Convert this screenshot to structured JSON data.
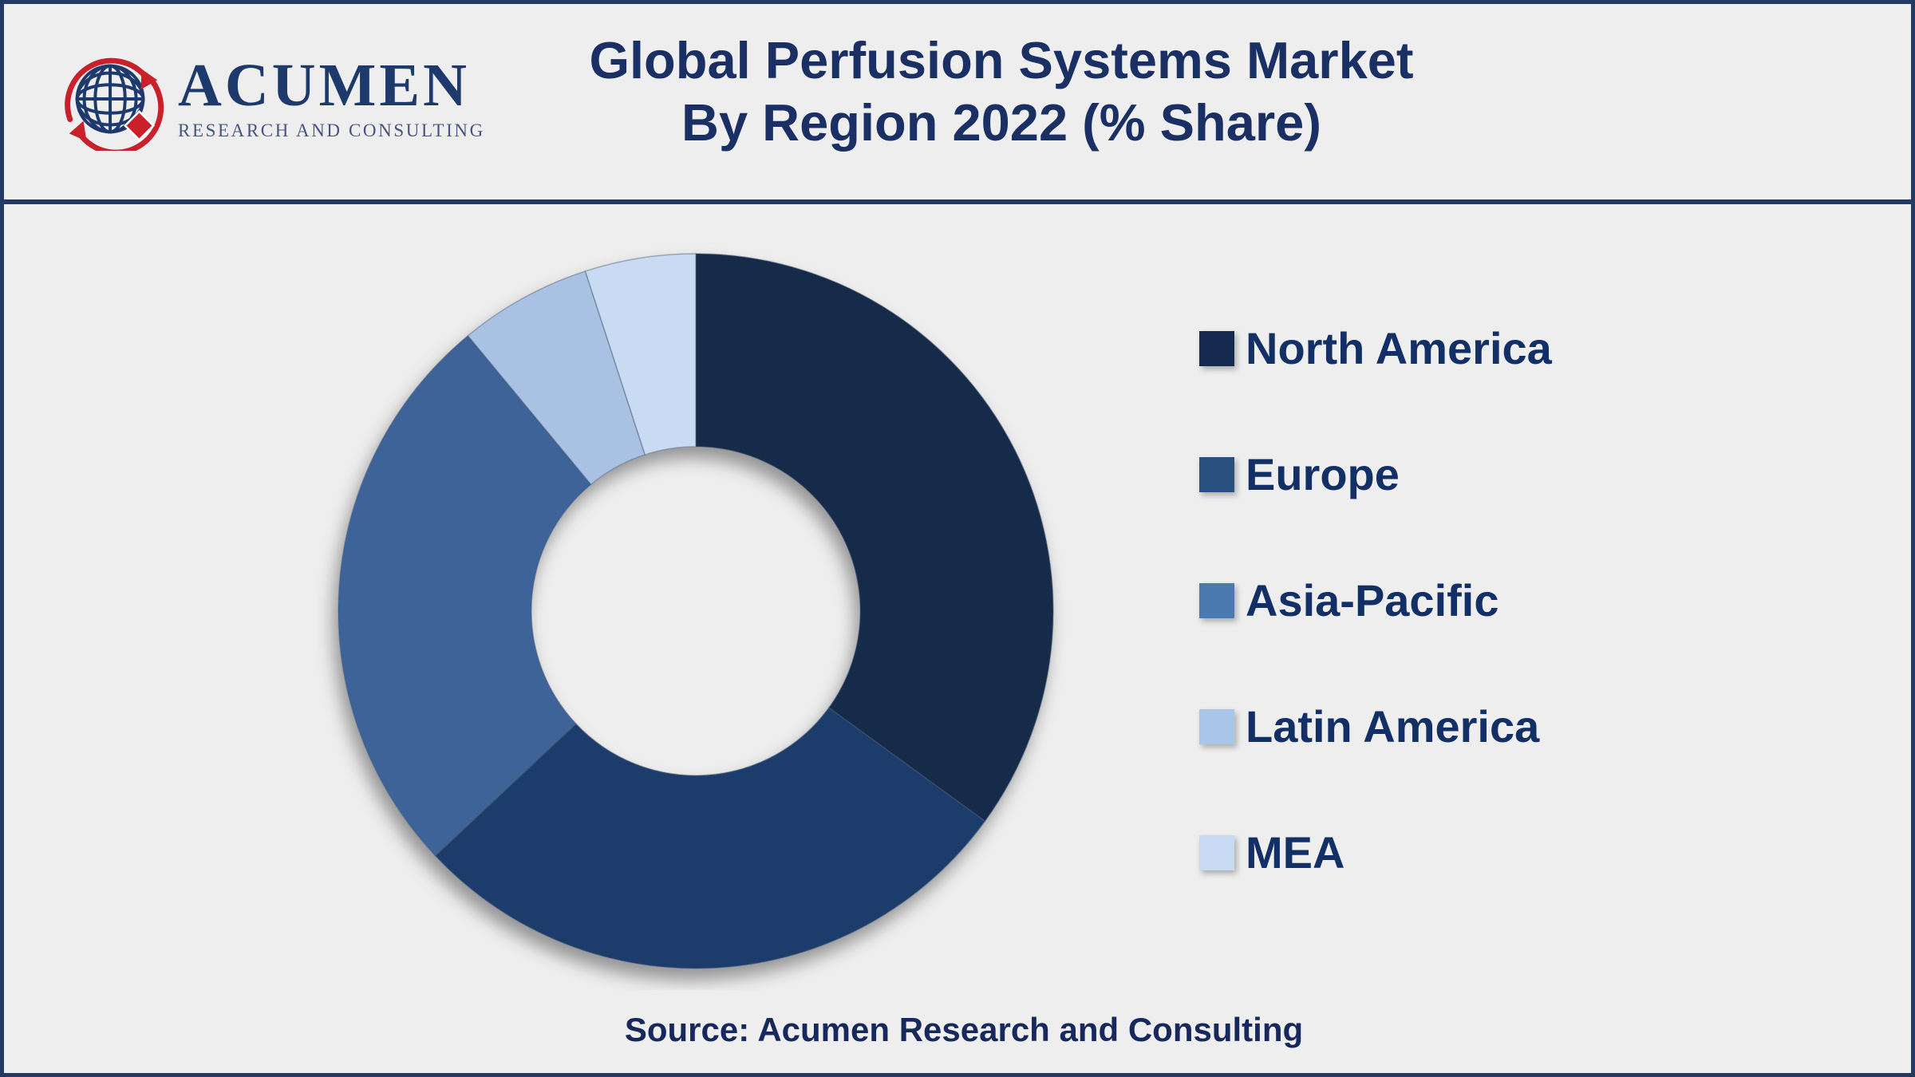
{
  "page": {
    "background_color": "#EEEEEF",
    "border_color": "#233A65"
  },
  "header": {
    "logo": {
      "name": "ACUMEN",
      "tagline": "RESEARCH AND CONSULTING",
      "navy": "#1E3A6D",
      "red": "#C9202A"
    },
    "title_line1": "Global Perfusion Systems Market",
    "title_line2": "By Region 2022 (% Share)",
    "title_color": "#1A2F63"
  },
  "chart_data": {
    "type": "pie",
    "subtype": "donut",
    "title": "Global Perfusion Systems Market By Region 2022 (% Share)",
    "unit": "% share",
    "year": "2022",
    "categories": [
      "North America",
      "Europe",
      "Asia-Pacific",
      "Latin America",
      "MEA"
    ],
    "values": [
      35,
      28,
      26,
      6,
      5
    ],
    "colors": [
      "#15294A",
      "#1F3E6C",
      "#3C6498",
      "#A9C2E4",
      "#C9DBF2"
    ],
    "start_angle_deg": 0,
    "direction": "clockwise",
    "inner_radius_ratio": 0.46,
    "legend_position": "right",
    "data_labels": "none"
  },
  "legend": {
    "items": [
      {
        "label": "North America",
        "color": "#16294E"
      },
      {
        "label": "Europe",
        "color": "#2A5080"
      },
      {
        "label": "Asia-Pacific",
        "color": "#4B7AB0"
      },
      {
        "label": "Latin America",
        "color": "#A9C6E9"
      },
      {
        "label": "MEA",
        "color": "#C7DAF2"
      }
    ],
    "text_color": "#122F66"
  },
  "footer": {
    "source": "Source: Acumen Research and Consulting"
  }
}
